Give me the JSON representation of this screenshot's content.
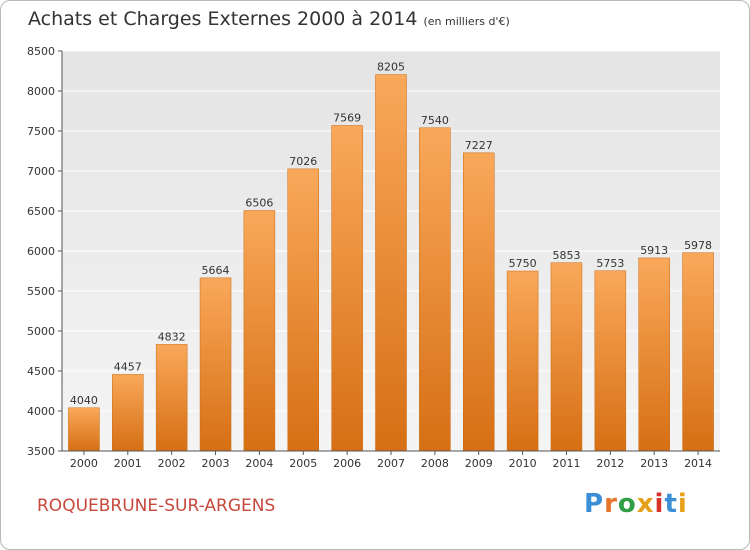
{
  "header": {
    "title": "Achats et Charges Externes 2000 à 2014",
    "subtitle": "(en milliers d'€)"
  },
  "footer": {
    "town": "ROQUEBRUNE-SUR-ARGENS",
    "logo_letters": [
      "P",
      "r",
      "o",
      "x",
      "i",
      "t",
      "i"
    ],
    "logo_colors": [
      "#3a8fd6",
      "#e8732a",
      "#2f9e44",
      "#e6a119",
      "#d6332d",
      "#3a8fd6",
      "#e6a119"
    ]
  },
  "chart_data": {
    "type": "bar",
    "title": "Achats et Charges Externes 2000 à 2014",
    "categories": [
      "2000",
      "2001",
      "2002",
      "2003",
      "2004",
      "2005",
      "2006",
      "2007",
      "2008",
      "2009",
      "2010",
      "2011",
      "2012",
      "2013",
      "2014"
    ],
    "values": [
      4040,
      4457,
      4832,
      5664,
      6506,
      7026,
      7569,
      8205,
      7540,
      7227,
      5750,
      5853,
      5753,
      5913,
      5978
    ],
    "ylim": [
      3500,
      8500
    ],
    "yticks": [
      3500,
      4000,
      4500,
      5000,
      5500,
      6000,
      6500,
      7000,
      7500,
      8000,
      8500
    ],
    "grid": true,
    "bar_color_top": "#f9a85a",
    "bar_color_bottom": "#d66f14"
  }
}
